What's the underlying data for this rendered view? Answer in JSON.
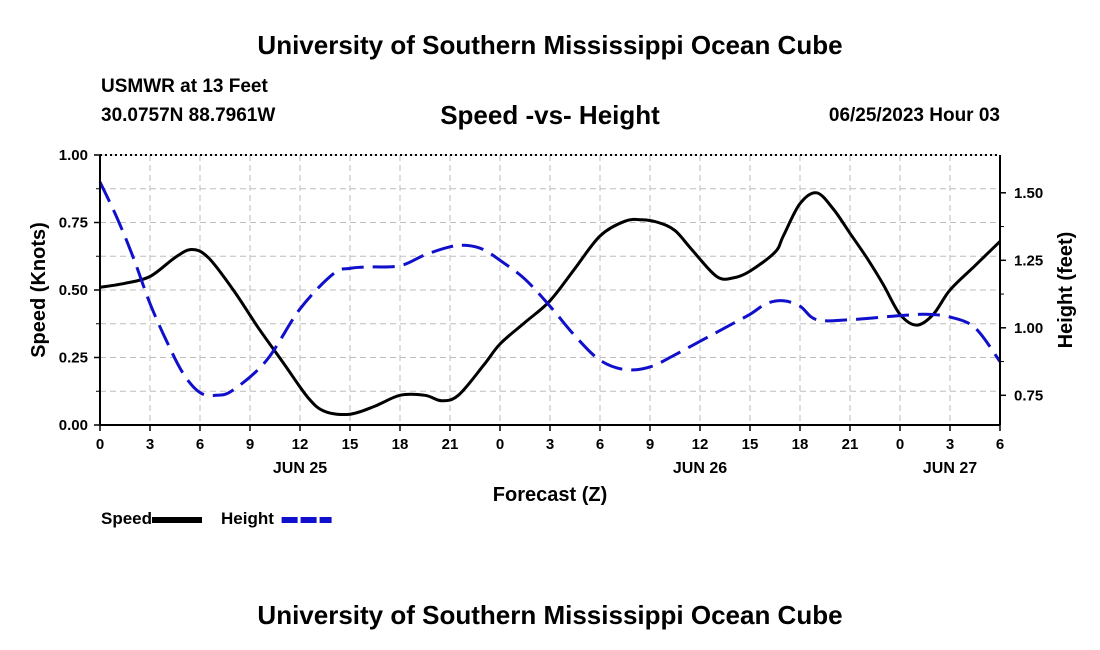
{
  "header": {
    "title": "University of Southern Mississippi Ocean Cube",
    "station": "USMWR at 13 Feet",
    "coordinates": "30.0757N  88.7961W",
    "datetime": "06/25/2023 Hour 03"
  },
  "footer": {
    "title": "University of Southern Mississippi Ocean Cube"
  },
  "chart_data": {
    "type": "line",
    "title": "Speed -vs- Height",
    "xlabel": "Forecast (Z)",
    "ylabel": "Speed (Knots)",
    "y2label": "Height (feet)",
    "xlim": [
      0,
      54
    ],
    "ylim": [
      0,
      1.0
    ],
    "y2lim": [
      0.64,
      1.64
    ],
    "grid": true,
    "x_ticks": [
      0,
      3,
      6,
      9,
      12,
      15,
      18,
      21,
      24,
      27,
      30,
      33,
      36,
      39,
      42,
      45,
      48,
      51,
      54
    ],
    "x_tick_labels": [
      "0",
      "3",
      "6",
      "9",
      "12",
      "15",
      "18",
      "21",
      "0",
      "3",
      "6",
      "9",
      "12",
      "15",
      "18",
      "21",
      "0",
      "3",
      "6"
    ],
    "date_labels": [
      {
        "x": 12,
        "label": "JUN 25"
      },
      {
        "x": 36,
        "label": "JUN 26"
      },
      {
        "x": 51,
        "label": "JUN 27"
      }
    ],
    "y_ticks": [
      0,
      0.25,
      0.5,
      0.75,
      1.0
    ],
    "y_tick_labels": [
      "0.00",
      "0.25",
      "0.50",
      "0.75",
      "1.00"
    ],
    "y2_ticks": [
      0.75,
      1.0,
      1.25,
      1.5
    ],
    "y2_tick_labels": [
      "0.75",
      "1.00",
      "1.25",
      "1.50"
    ],
    "legend_position": "bottom-left",
    "series": [
      {
        "name": "Speed",
        "axis": "left",
        "color": "#000000",
        "dash": "solid",
        "x": [
          0,
          1.5,
          3,
          4.5,
          5.5,
          6.5,
          8,
          9.5,
          11,
          12.5,
          13.5,
          15,
          16.5,
          18,
          19.5,
          20.5,
          21.5,
          23,
          24,
          25.5,
          27,
          28.5,
          30,
          31.5,
          32.5,
          33.5,
          34.5,
          35.5,
          37,
          38,
          39,
          40.5,
          41,
          42,
          43,
          44,
          45,
          46,
          47,
          48,
          49,
          50,
          51,
          52.5,
          54
        ],
        "values": [
          0.51,
          0.525,
          0.55,
          0.62,
          0.65,
          0.62,
          0.5,
          0.36,
          0.23,
          0.1,
          0.05,
          0.04,
          0.07,
          0.11,
          0.11,
          0.09,
          0.11,
          0.22,
          0.3,
          0.38,
          0.46,
          0.58,
          0.7,
          0.755,
          0.76,
          0.75,
          0.72,
          0.65,
          0.55,
          0.545,
          0.57,
          0.64,
          0.7,
          0.82,
          0.86,
          0.8,
          0.71,
          0.62,
          0.52,
          0.41,
          0.37,
          0.41,
          0.5,
          0.59,
          0.68
        ]
      },
      {
        "name": "Height",
        "axis": "right",
        "color": "#1010cc",
        "dash": "dashed",
        "x": [
          0,
          1,
          2,
          3,
          4,
          5,
          6,
          7,
          8,
          10,
          12,
          14,
          15,
          16,
          18,
          19.5,
          21,
          22,
          23,
          24,
          25.5,
          27,
          28.5,
          30,
          31.5,
          33,
          34.5,
          36,
          37.5,
          39,
          40,
          41,
          42,
          43,
          45,
          48,
          49.5,
          51,
          52.5,
          54
        ],
        "values": [
          1.54,
          1.41,
          1.26,
          1.09,
          0.95,
          0.83,
          0.76,
          0.75,
          0.77,
          0.88,
          1.07,
          1.2,
          1.22,
          1.225,
          1.23,
          1.27,
          1.3,
          1.305,
          1.29,
          1.25,
          1.18,
          1.08,
          0.97,
          0.88,
          0.845,
          0.855,
          0.9,
          0.95,
          1.0,
          1.05,
          1.09,
          1.1,
          1.08,
          1.03,
          1.03,
          1.045,
          1.05,
          1.04,
          1.0,
          0.875
        ]
      }
    ]
  }
}
